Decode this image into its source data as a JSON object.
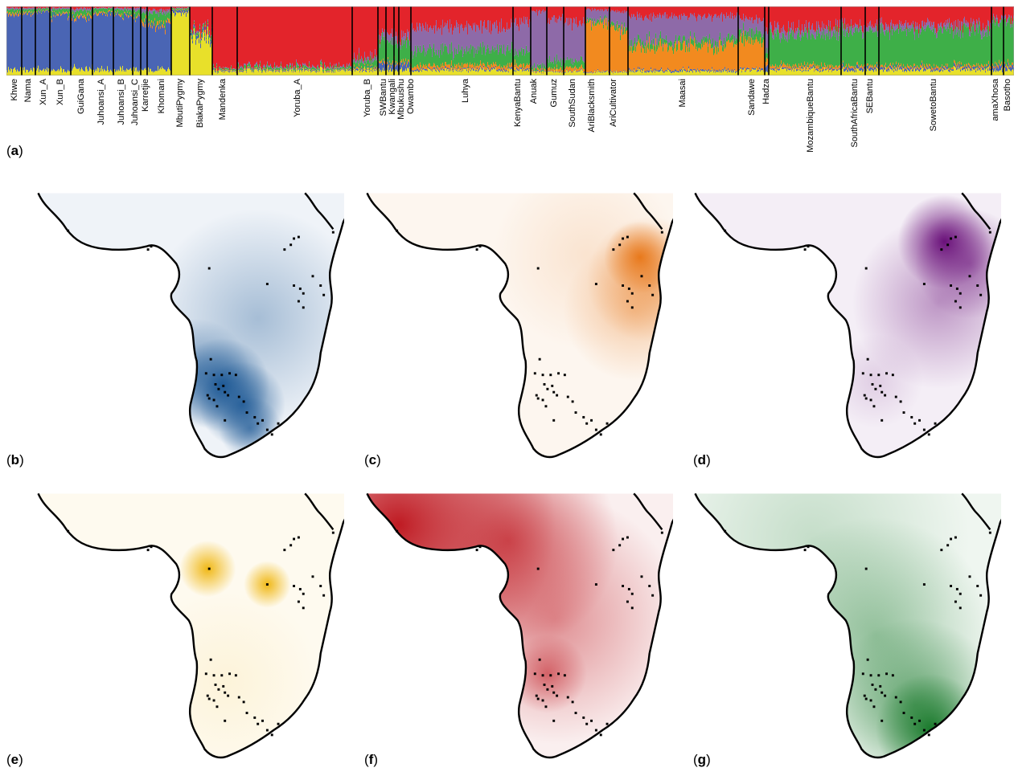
{
  "figure": {
    "panel_a_letter": "a",
    "populations": [
      "Khwe",
      "Nama",
      "Xun_A",
      "Xun_B",
      "GuiGana",
      "Juhoansi_A",
      "Juhoansi_B",
      "Juhoansi_C",
      "Karretjie",
      "Khomani",
      "MbutiPygmy",
      "BiakaPygmy",
      "Mandenka",
      "Yoruba_A",
      "Yoruba_B",
      "SWBantu",
      "Kwangali",
      "Mbukushu",
      "Owambo",
      "Luhya",
      "KenyaBantu",
      "Anuak",
      "Gumuz",
      "SouthSudan",
      "AriBlacksmith",
      "AriCultivator",
      "Maasai",
      "Sandawe",
      "Hadza",
      "MozambiqueBantu",
      "SouthAfricaBantu",
      "SEBantu",
      "SowetoBantu",
      "amaXhosa",
      "Basotho"
    ],
    "component_colors": {
      "blue": "#4a65b4",
      "orange": "#f28a1f",
      "purple": "#8e6aa8",
      "yellow": "#e8e02a",
      "red": "#e3242b",
      "green": "#3eaf48"
    },
    "panels": [
      {
        "letter": "b",
        "component": "blue",
        "color": "#1f5a96"
      },
      {
        "letter": "c",
        "component": "orange",
        "color": "#e8791c"
      },
      {
        "letter": "d",
        "component": "purple",
        "color": "#6a117a"
      },
      {
        "letter": "e",
        "component": "yellow",
        "color": "#f0b816"
      },
      {
        "letter": "f",
        "component": "red",
        "color": "#bf1a22"
      },
      {
        "letter": "g",
        "component": "green",
        "color": "#1a7a2c"
      }
    ]
  }
}
